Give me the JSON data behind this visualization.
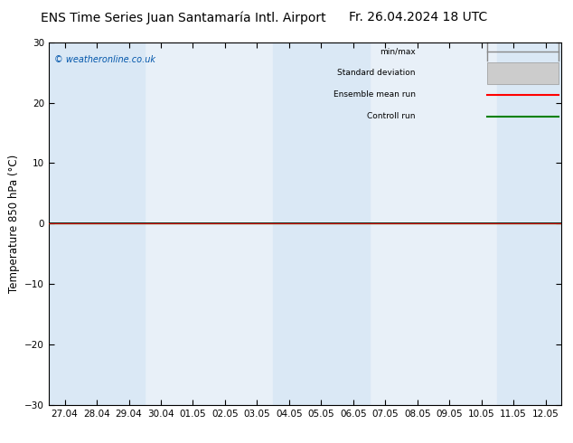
{
  "title_left": "ENS Time Series Juan Santamaría Intl. Airport",
  "title_right": "Fr. 26.04.2024 18 UTC",
  "ylabel": "Temperature 850 hPa (°C)",
  "watermark": "© weatheronline.co.uk",
  "ylim": [
    -30,
    30
  ],
  "yticks": [
    -30,
    -20,
    -10,
    0,
    10,
    20,
    30
  ],
  "xtick_labels": [
    "27.04",
    "28.04",
    "29.04",
    "30.04",
    "01.05",
    "02.05",
    "03.05",
    "04.05",
    "05.05",
    "06.05",
    "07.05",
    "08.05",
    "09.05",
    "10.05",
    "11.05",
    "12.05"
  ],
  "bg_color": "#ffffff",
  "plot_bg_color": "#e8f0f8",
  "band_color_light": "#dae8f5",
  "band_indices_light": [
    0,
    1,
    2,
    7,
    8,
    9,
    14,
    15
  ],
  "legend_labels": [
    "min/max",
    "Standard deviation",
    "Ensemble mean run",
    "Controll run"
  ],
  "title_fontsize": 10,
  "tick_fontsize": 7.5,
  "ylabel_fontsize": 8.5,
  "watermark_color": "#0055aa"
}
